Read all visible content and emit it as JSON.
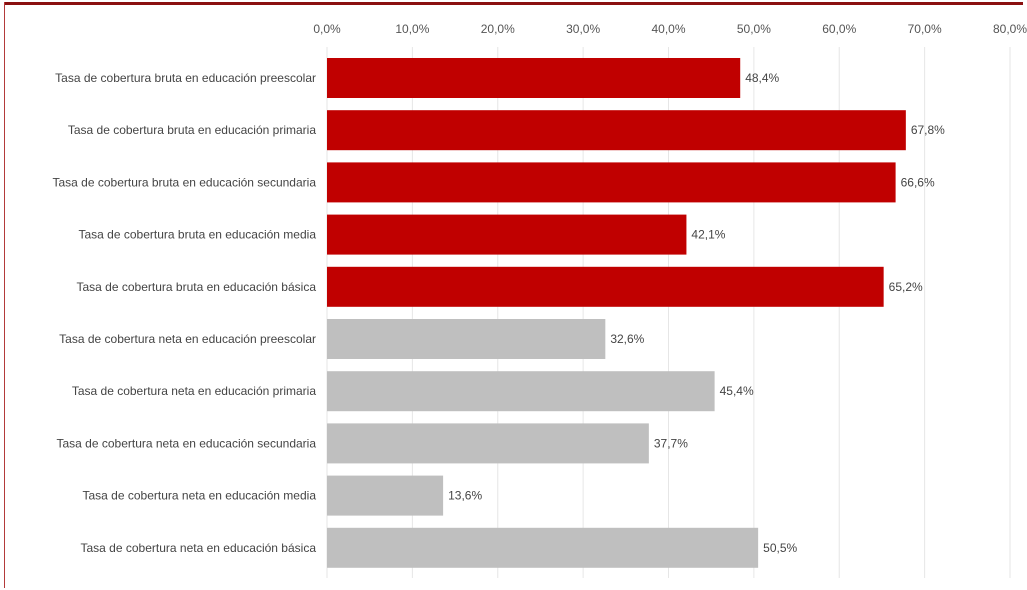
{
  "chart_data": {
    "type": "bar",
    "orientation": "horizontal",
    "title": "",
    "xlabel": "",
    "ylabel": "",
    "xlim": [
      0,
      80
    ],
    "x_ticks": [
      "0,0%",
      "10,0%",
      "20,0%",
      "30,0%",
      "40,0%",
      "50,0%",
      "60,0%",
      "70,0%",
      "80,0%"
    ],
    "x_tick_values": [
      0,
      10,
      20,
      30,
      40,
      50,
      60,
      70,
      80
    ],
    "x_axis_position": "top",
    "grid": true,
    "legend": "none",
    "colors": {
      "bruta": "#c00000",
      "neta": "#bfbfbf"
    },
    "categories": [
      "Tasa de cobertura bruta en educación preescolar",
      "Tasa de cobertura bruta en educación primaria",
      "Tasa de cobertura bruta en educación secundaria",
      "Tasa de cobertura bruta en educación media",
      "Tasa de cobertura bruta en educación básica",
      "Tasa de cobertura neta en educación preescolar",
      "Tasa de cobertura neta en educación primaria",
      "Tasa de cobertura neta en educación secundaria",
      "Tasa de cobertura neta en educación media",
      "Tasa de cobertura neta en educación básica"
    ],
    "values": [
      48.4,
      67.8,
      66.6,
      42.1,
      65.2,
      32.6,
      45.4,
      37.7,
      13.6,
      50.5
    ],
    "value_labels": [
      "48,4%",
      "67,8%",
      "66,6%",
      "42,1%",
      "65,2%",
      "32,6%",
      "45,4%",
      "37,7%",
      "13,6%",
      "50,5%"
    ],
    "bar_color_keys": [
      "bruta",
      "bruta",
      "bruta",
      "bruta",
      "bruta",
      "neta",
      "neta",
      "neta",
      "neta",
      "neta"
    ]
  }
}
